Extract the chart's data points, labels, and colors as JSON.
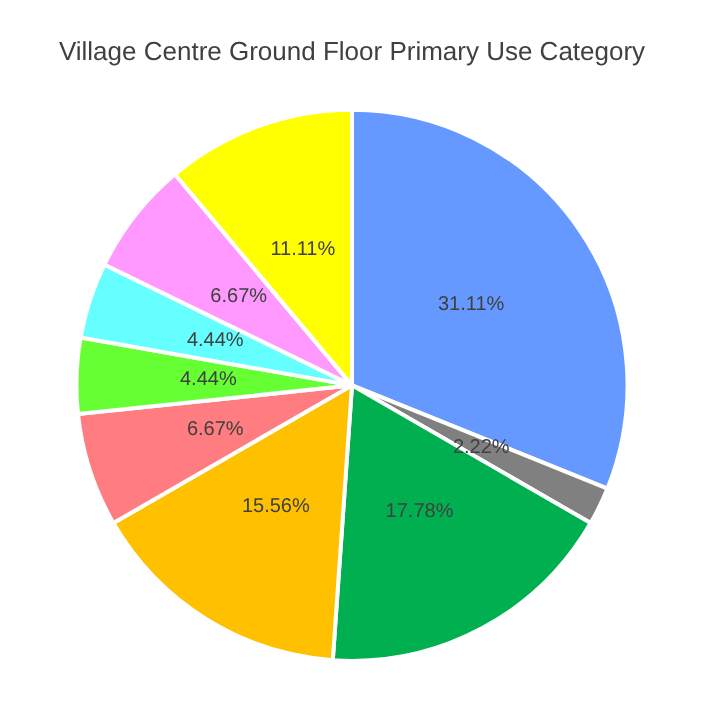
{
  "chart_data": {
    "type": "pie",
    "title": "Village Centre Ground Floor Primary Use Category",
    "categories": [
      null,
      null,
      null,
      null,
      null,
      null,
      null,
      null,
      null
    ],
    "values": [
      31.11,
      2.22,
      17.78,
      15.56,
      6.67,
      4.44,
      4.44,
      6.67,
      11.11
    ],
    "value_labels": [
      "31.11%",
      "2.22%",
      "17.78%",
      "15.56%",
      "6.67%",
      "4.44%",
      "4.44%",
      "6.67%",
      "11.11%"
    ],
    "colors": [
      "#6699ff",
      "#808080",
      "#00b050",
      "#ffc000",
      "#ff7c80",
      "#66ff33",
      "#66ffff",
      "#ff99ff",
      "#ffff00"
    ]
  }
}
